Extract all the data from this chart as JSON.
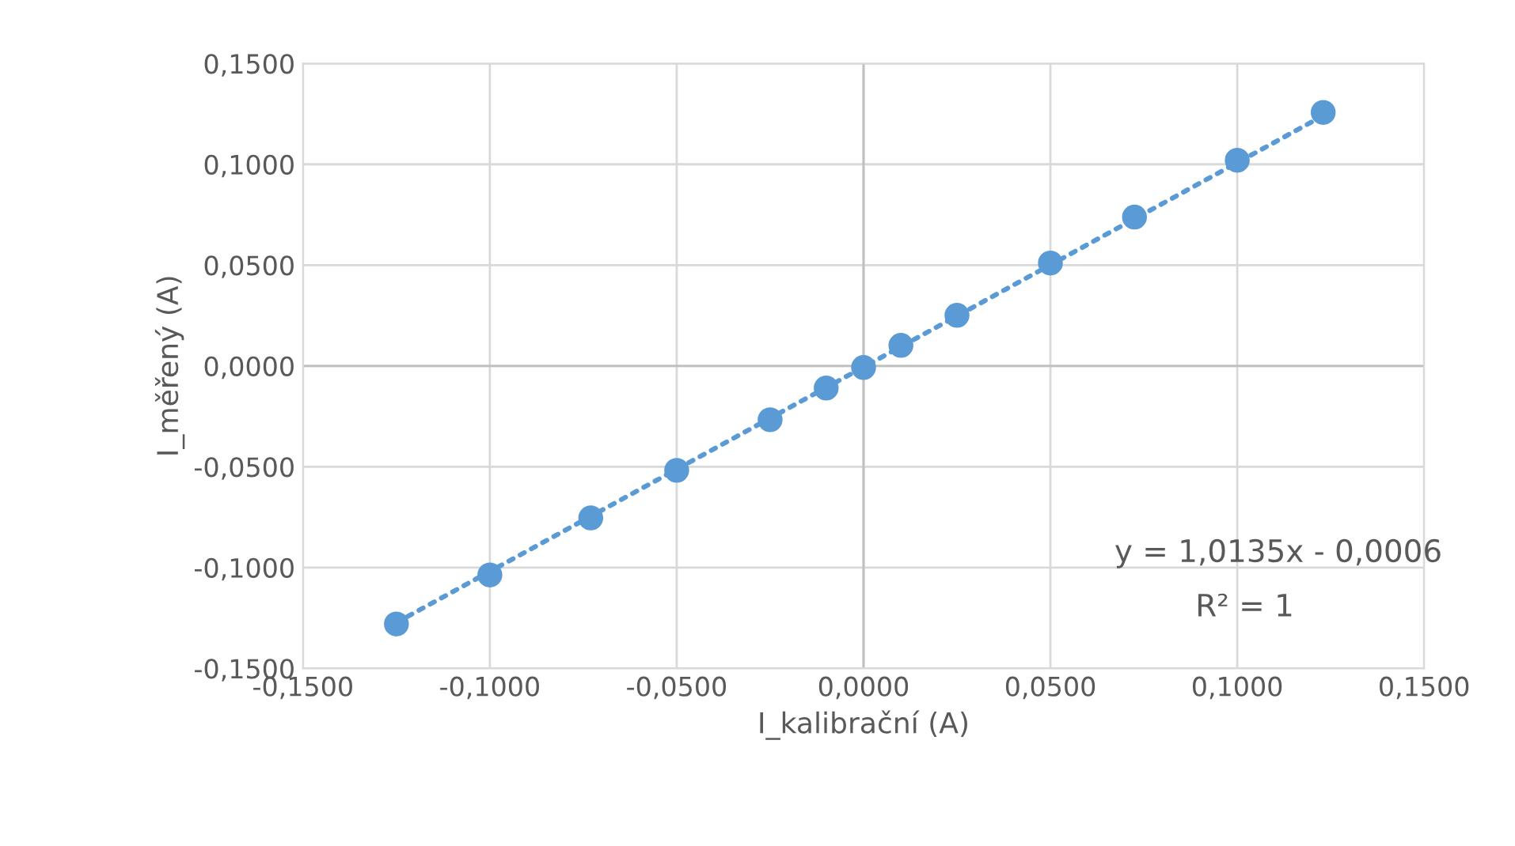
{
  "chart_data": {
    "type": "scatter",
    "xlabel": "I_kalibrační (A)",
    "ylabel": "I_měřený (A)",
    "series": [
      {
        "color": "#5b9bd5",
        "marker": "circle",
        "x": [
          -0.125,
          -0.1,
          -0.073,
          -0.05,
          -0.025,
          -0.01,
          0.0,
          0.01,
          0.025,
          0.05,
          0.0725,
          0.1,
          0.123
        ],
        "values": [
          -0.128,
          -0.1037,
          -0.0754,
          -0.0518,
          -0.0267,
          -0.011,
          -0.0008,
          0.0102,
          0.0251,
          0.051,
          0.0738,
          0.102,
          0.1257
        ]
      },
      {
        "type": "line",
        "color": "#5b9bd5",
        "marker": "none",
        "line_style": "dotted",
        "x": [
          -0.125,
          0.123
        ],
        "values": [
          -0.1273,
          0.1241
        ]
      }
    ],
    "xlim": [
      -0.15,
      0.15
    ],
    "xticks": [
      {
        "value": -0.15,
        "label": "-0,1500"
      },
      {
        "value": -0.1,
        "label": "-0,1000"
      },
      {
        "value": -0.05,
        "label": "-0,0500"
      },
      {
        "value": 0.0,
        "label": "0,0000"
      },
      {
        "value": 0.05,
        "label": "0,0500"
      },
      {
        "value": 0.1,
        "label": "0,1000"
      },
      {
        "value": 0.15,
        "label": "0,1500"
      }
    ],
    "ylim": [
      -0.15,
      0.15
    ],
    "yticks": [
      {
        "value": -0.15,
        "label": "-0,1500"
      },
      {
        "value": -0.1,
        "label": "-0,1000"
      },
      {
        "value": -0.05,
        "label": "-0,0500"
      },
      {
        "value": 0.0,
        "label": "0,0000"
      },
      {
        "value": 0.05,
        "label": "0,0500"
      },
      {
        "value": 0.1,
        "label": "0,1000"
      },
      {
        "value": 0.15,
        "label": "0,1500"
      }
    ],
    "grid": true,
    "legend": false,
    "annotations": [
      "y = 1,0135x - 0,0006",
      "R² = 1"
    ]
  }
}
